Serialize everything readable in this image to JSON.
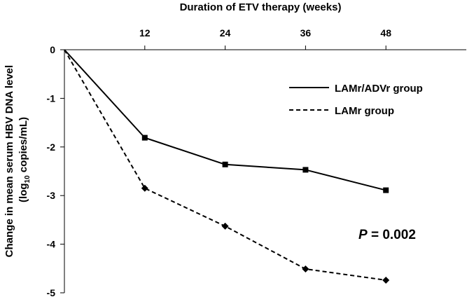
{
  "chart_data": {
    "type": "line",
    "title": "",
    "xlabel": "Duration of ETV therapy (weeks)",
    "ylabel": {
      "line1": "Change in mean serum HBV DNA level",
      "line2_prefix": "(log",
      "line2_sub": "10",
      "line2_suffix": " copies/mL)"
    },
    "x_axis_position": "top",
    "xticks": [
      12,
      24,
      36,
      48
    ],
    "xlim": [
      0,
      60
    ],
    "yticks": [
      0,
      -1,
      -2,
      -3,
      -4,
      -5
    ],
    "ylim": [
      -5,
      0
    ],
    "grid": false,
    "legend_position": "top-right",
    "series": [
      {
        "name": "LAMr/ADVr group",
        "line_style": "solid",
        "marker": "square",
        "x": [
          0,
          12,
          24,
          36,
          48
        ],
        "y": [
          0,
          -1.81,
          -2.36,
          -2.47,
          -2.89
        ]
      },
      {
        "name": "LAMr group",
        "line_style": "dashed",
        "marker": "diamond",
        "x": [
          0,
          12,
          24,
          36,
          48
        ],
        "y": [
          0,
          -2.85,
          -3.63,
          -4.51,
          -4.74
        ]
      }
    ],
    "annotation": {
      "italic_part": "P",
      "rest": " = 0.002"
    }
  }
}
